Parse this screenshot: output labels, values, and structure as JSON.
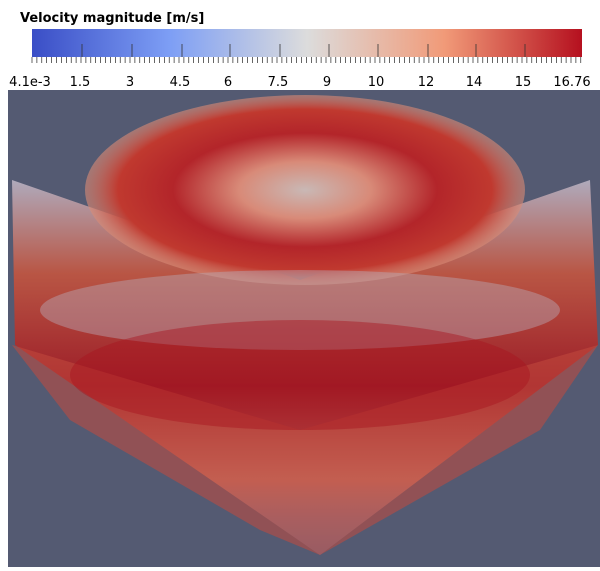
{
  "legend": {
    "title": "Velocity magnitude [m/s]",
    "tick_labels": [
      "4.1e-3",
      "1.5",
      "3",
      "4.5",
      "6",
      "7.5",
      "9",
      "10",
      "12",
      "14",
      "15",
      "16.76"
    ]
  }
}
